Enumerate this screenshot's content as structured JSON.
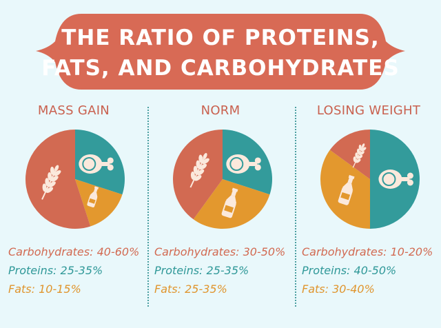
{
  "title": {
    "line1": "THE RATIO OF PROTEINS,",
    "line2": "FATS, AND CARBOHYDRATES"
  },
  "colors": {
    "background": "#e9f8fb",
    "banner": "#d86a55",
    "heading": "#c9614f",
    "carbohydrates": "#d26a52",
    "proteins": "#339b9b",
    "fats": "#e3982e",
    "icon": "#fbe9dc"
  },
  "chart_data": [
    {
      "type": "pie",
      "title": "MASS GAIN",
      "slices": [
        {
          "name": "Proteins",
          "range": "25-35%",
          "value": 30,
          "color": "#339b9b",
          "icon": "meat-icon"
        },
        {
          "name": "Fats",
          "range": "10-15%",
          "value": 15,
          "color": "#e3982e",
          "icon": "bottle-icon"
        },
        {
          "name": "Carbohydrates",
          "range": "40-60%",
          "value": 55,
          "color": "#d26a52",
          "icon": "wheat-icon"
        }
      ],
      "labels": {
        "carbohydrates": "Carbohydrates: 40-60%",
        "proteins": "Proteins: 25-35%",
        "fats": "Fats: 10-15%"
      }
    },
    {
      "type": "pie",
      "title": "NORM",
      "slices": [
        {
          "name": "Proteins",
          "range": "25-35%",
          "value": 30,
          "color": "#339b9b",
          "icon": "meat-icon"
        },
        {
          "name": "Fats",
          "range": "25-35%",
          "value": 30,
          "color": "#e3982e",
          "icon": "bottle-icon"
        },
        {
          "name": "Carbohydrates",
          "range": "30-50%",
          "value": 40,
          "color": "#d26a52",
          "icon": "wheat-icon"
        }
      ],
      "labels": {
        "carbohydrates": "Carbohydrates: 30-50%",
        "proteins": "Proteins: 25-35%",
        "fats": "Fats: 25-35%"
      }
    },
    {
      "type": "pie",
      "title": "LOSING WEIGHT",
      "slices": [
        {
          "name": "Proteins",
          "range": "40-50%",
          "value": 50,
          "color": "#339b9b",
          "icon": "meat-icon"
        },
        {
          "name": "Fats",
          "range": "30-40%",
          "value": 35,
          "color": "#e3982e",
          "icon": "bottle-icon"
        },
        {
          "name": "Carbohydrates",
          "range": "10-20%",
          "value": 15,
          "color": "#d26a52",
          "icon": "wheat-icon"
        }
      ],
      "labels": {
        "carbohydrates": "Carbohydrates: 10-20%",
        "proteins": "Proteins: 40-50%",
        "fats": "Fats: 30-40%"
      }
    }
  ]
}
